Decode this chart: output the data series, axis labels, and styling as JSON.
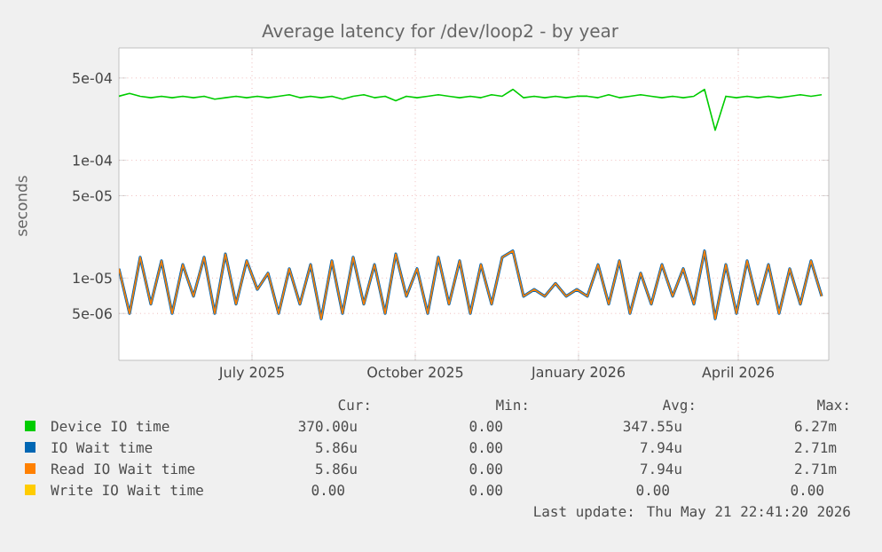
{
  "chart_data": {
    "type": "line",
    "title": "Average latency for /dev/loop2 - by year",
    "ylabel": "seconds",
    "x": [
      "2025-04-17",
      "2025-04-23",
      "2025-04-29",
      "2025-05-05",
      "2025-05-11",
      "2025-05-17",
      "2025-05-23",
      "2025-05-29",
      "2025-06-04",
      "2025-06-10",
      "2025-06-16",
      "2025-06-22",
      "2025-06-28",
      "2025-07-04",
      "2025-07-10",
      "2025-07-16",
      "2025-07-22",
      "2025-07-28",
      "2025-08-03",
      "2025-08-09",
      "2025-08-15",
      "2025-08-21",
      "2025-08-27",
      "2025-09-02",
      "2025-09-08",
      "2025-09-14",
      "2025-09-20",
      "2025-09-26",
      "2025-10-02",
      "2025-10-08",
      "2025-10-14",
      "2025-10-20",
      "2025-10-26",
      "2025-11-01",
      "2025-11-07",
      "2025-11-13",
      "2025-11-19",
      "2025-11-25",
      "2025-12-01",
      "2025-12-07",
      "2025-12-13",
      "2025-12-19",
      "2025-12-25",
      "2025-12-31",
      "2026-01-06",
      "2026-01-12",
      "2026-01-18",
      "2026-01-24",
      "2026-01-30",
      "2026-02-05",
      "2026-02-11",
      "2026-02-17",
      "2026-02-23",
      "2026-03-01",
      "2026-03-07",
      "2026-03-13",
      "2026-03-19",
      "2026-03-25",
      "2026-03-31",
      "2026-04-06",
      "2026-04-12",
      "2026-04-18",
      "2026-04-24",
      "2026-04-30",
      "2026-05-06",
      "2026-05-12",
      "2026-05-18"
    ],
    "series": [
      {
        "name": "Device IO time",
        "color": "#00cc00",
        "values": [
          0.00035,
          0.00037,
          0.00035,
          0.00034,
          0.00035,
          0.00034,
          0.00035,
          0.00034,
          0.00035,
          0.00033,
          0.00034,
          0.00035,
          0.00034,
          0.00035,
          0.00034,
          0.00035,
          0.00036,
          0.00034,
          0.00035,
          0.00034,
          0.00035,
          0.00033,
          0.00035,
          0.00036,
          0.00034,
          0.00035,
          0.00032,
          0.00035,
          0.00034,
          0.00035,
          0.00036,
          0.00035,
          0.00034,
          0.00035,
          0.00034,
          0.00036,
          0.00035,
          0.0004,
          0.00034,
          0.00035,
          0.00034,
          0.00035,
          0.00034,
          0.00035,
          0.00035,
          0.00034,
          0.00036,
          0.00034,
          0.00035,
          0.00036,
          0.00035,
          0.00034,
          0.00035,
          0.00034,
          0.00035,
          0.0004,
          0.00018,
          0.00035,
          0.00034,
          0.00035,
          0.00034,
          0.00035,
          0.00034,
          0.00035,
          0.00036,
          0.00035,
          0.00036
        ]
      },
      {
        "name": "IO Wait time",
        "color": "#0066b3",
        "values": [
          1.2e-05,
          5e-06,
          1.5e-05,
          6e-06,
          1.4e-05,
          5e-06,
          1.3e-05,
          7e-06,
          1.5e-05,
          5e-06,
          1.6e-05,
          6e-06,
          1.4e-05,
          8e-06,
          1.1e-05,
          5e-06,
          1.2e-05,
          6e-06,
          1.3e-05,
          4.5e-06,
          1.4e-05,
          5e-06,
          1.5e-05,
          6e-06,
          1.3e-05,
          5e-06,
          1.6e-05,
          7e-06,
          1.2e-05,
          5e-06,
          1.5e-05,
          6e-06,
          1.4e-05,
          5e-06,
          1.3e-05,
          6e-06,
          1.5e-05,
          1.7e-05,
          7e-06,
          8e-06,
          7e-06,
          9e-06,
          7e-06,
          8e-06,
          7e-06,
          1.3e-05,
          6e-06,
          1.4e-05,
          5e-06,
          1.1e-05,
          6e-06,
          1.3e-05,
          7e-06,
          1.2e-05,
          6e-06,
          1.7e-05,
          4.5e-06,
          1.3e-05,
          5e-06,
          1.4e-05,
          6e-06,
          1.3e-05,
          5e-06,
          1.2e-05,
          6e-06,
          1.4e-05,
          7e-06
        ]
      },
      {
        "name": "Read IO Wait time",
        "color": "#ff8000",
        "values": [
          1.2e-05,
          5e-06,
          1.5e-05,
          6e-06,
          1.4e-05,
          5e-06,
          1.3e-05,
          7e-06,
          1.5e-05,
          5e-06,
          1.6e-05,
          6e-06,
          1.4e-05,
          8e-06,
          1.1e-05,
          5e-06,
          1.2e-05,
          6e-06,
          1.3e-05,
          4.5e-06,
          1.4e-05,
          5e-06,
          1.5e-05,
          6e-06,
          1.3e-05,
          5e-06,
          1.6e-05,
          7e-06,
          1.2e-05,
          5e-06,
          1.5e-05,
          6e-06,
          1.4e-05,
          5e-06,
          1.3e-05,
          6e-06,
          1.5e-05,
          1.7e-05,
          7e-06,
          8e-06,
          7e-06,
          9e-06,
          7e-06,
          8e-06,
          7e-06,
          1.3e-05,
          6e-06,
          1.4e-05,
          5e-06,
          1.1e-05,
          6e-06,
          1.3e-05,
          7e-06,
          1.2e-05,
          6e-06,
          1.7e-05,
          4.5e-06,
          1.3e-05,
          5e-06,
          1.4e-05,
          6e-06,
          1.3e-05,
          5e-06,
          1.2e-05,
          6e-06,
          1.4e-05,
          7e-06
        ]
      },
      {
        "name": "Write IO Wait time",
        "color": "#ffcc00",
        "values": [
          null,
          null,
          null,
          null,
          null,
          null,
          null,
          null,
          null,
          null,
          null,
          null,
          null,
          null,
          null,
          null,
          null,
          null,
          null,
          null,
          null,
          null,
          null,
          null,
          null,
          null,
          null,
          null,
          null,
          null,
          null,
          null,
          null,
          null,
          null,
          null,
          null,
          null,
          null,
          null,
          null,
          null,
          null,
          null,
          null,
          null,
          null,
          null,
          null,
          null,
          null,
          null,
          null,
          null,
          null,
          null,
          null,
          null,
          null,
          null,
          null,
          null,
          null,
          null,
          null,
          null,
          null
        ]
      }
    ],
    "log": true,
    "ylim": [
      2e-06,
      0.0009
    ],
    "yticks": [
      {
        "value": 5e-06,
        "label": "5e-06"
      },
      {
        "value": 1e-05,
        "label": "1e-05"
      },
      {
        "value": 5e-05,
        "label": "5e-05"
      },
      {
        "value": 0.0001,
        "label": "1e-04"
      },
      {
        "value": 0.0005,
        "label": "5e-04"
      }
    ],
    "xlim": [
      "2025-04-17",
      "2026-05-22"
    ],
    "xticks": [
      {
        "value": "2025-07-01",
        "label": "July 2025"
      },
      {
        "value": "2025-10-01",
        "label": "October 2025"
      },
      {
        "value": "2026-01-01",
        "label": "January 2026"
      },
      {
        "value": "2026-04-01",
        "label": "April 2026"
      }
    ],
    "grid": true,
    "legend": "bottom",
    "annotations": [
      "Cur:",
      "Min:",
      "Avg:",
      "Max:",
      "370.00u",
      "0.00",
      "347.55u",
      "6.27m",
      "5.86u",
      "0.00",
      "7.94u",
      "2.71m",
      "5.86u",
      "0.00",
      "7.94u",
      "2.71m",
      "0.00",
      "0.00",
      "0.00",
      "0.00",
      "Last update: Thu May 21 22:41:20 2026"
    ]
  }
}
